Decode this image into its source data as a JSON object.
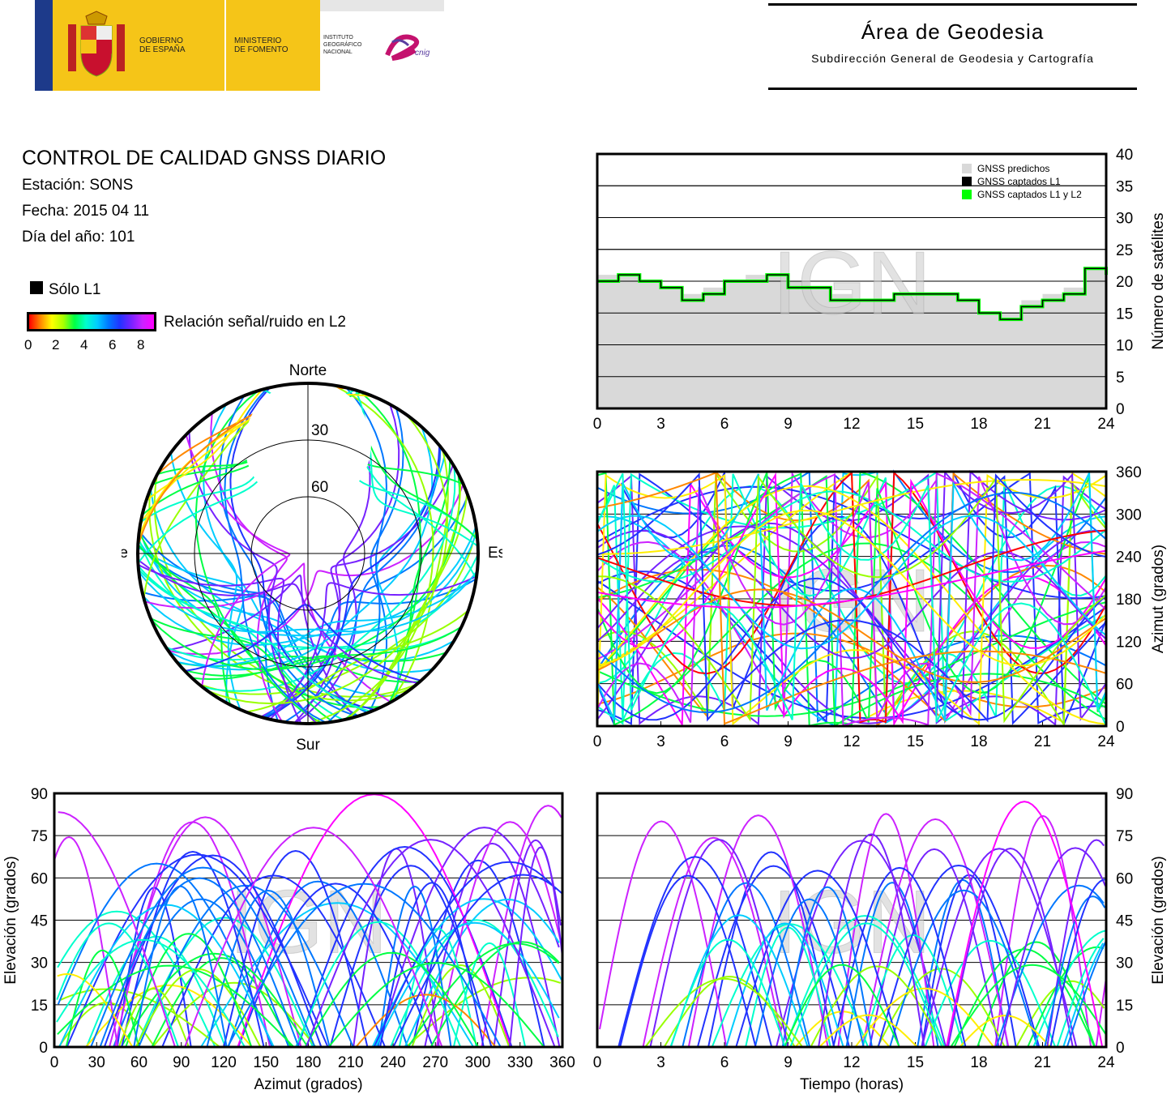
{
  "header": {
    "gov_line1": "GOBIERNO",
    "gov_line2": "DE ESPAÑA",
    "min_line1": "MINISTERIO",
    "min_line2": "DE FOMENTO",
    "ign_line1": "INSTITUTO",
    "ign_line2": "GEOGRÁFICO",
    "ign_line3": "NACIONAL",
    "cnig": "cnig",
    "area_title": "Área de Geodesia",
    "area_subtitle": "Subdirección General de Geodesia y Cartografía"
  },
  "report": {
    "title": "CONTROL DE CALIDAD GNSS DIARIO",
    "station": "Estación: SONS",
    "date": "Fecha: 2015 04 11",
    "doy": "Día del año: 101"
  },
  "legend": {
    "l1_only": "Sólo L1",
    "snr_label": "Relación señal/ruido en L2",
    "snr_ticks": [
      "0",
      "2",
      "4",
      "6",
      "8"
    ]
  },
  "watermark": "IGN",
  "colors": {
    "predicted": "#d9d9d9",
    "l1": "#000000",
    "l1l2": "#00ff00"
  },
  "chart_data": [
    {
      "type": "area",
      "id": "satellite-count",
      "ylabel": "Número de satélites",
      "xlim": [
        0,
        24
      ],
      "ylim": [
        0,
        40
      ],
      "xticks": [
        "0",
        "3",
        "6",
        "9",
        "12",
        "15",
        "18",
        "21",
        "24"
      ],
      "yticks": [
        "0",
        "5",
        "10",
        "15",
        "20",
        "25",
        "30",
        "35",
        "40"
      ],
      "grid": true,
      "legend_position": "top-right",
      "series": [
        {
          "name": "GNSS predichos",
          "x": [
            0,
            1,
            2,
            3,
            4,
            5,
            6,
            7,
            8,
            9,
            10,
            11,
            12,
            13,
            14,
            15,
            16,
            17,
            18,
            19,
            20,
            21,
            22,
            23,
            24
          ],
          "values": [
            21,
            21,
            20,
            19,
            18,
            19,
            20,
            21,
            21,
            20,
            19,
            18,
            17,
            17,
            18,
            18,
            18,
            17,
            15,
            15,
            17,
            18,
            19,
            22,
            21
          ]
        },
        {
          "name": "GNSS captados L1",
          "x": [
            0,
            1,
            2,
            3,
            4,
            5,
            6,
            7,
            8,
            9,
            10,
            11,
            12,
            13,
            14,
            15,
            16,
            17,
            18,
            19,
            20,
            21,
            22,
            23,
            24
          ],
          "values": [
            20,
            21,
            20,
            19,
            17,
            18,
            20,
            20,
            21,
            19,
            19,
            17,
            17,
            17,
            18,
            18,
            18,
            17,
            15,
            14,
            16,
            17,
            18,
            22,
            21
          ]
        },
        {
          "name": "GNSS captados L1 y L2",
          "x": [
            0,
            1,
            2,
            3,
            4,
            5,
            6,
            7,
            8,
            9,
            10,
            11,
            12,
            13,
            14,
            15,
            16,
            17,
            18,
            19,
            20,
            21,
            22,
            23,
            24
          ],
          "values": [
            20,
            21,
            20,
            19,
            17,
            18,
            20,
            20,
            21,
            19,
            19,
            17,
            17,
            17,
            18,
            18,
            18,
            17,
            15,
            14,
            16,
            17,
            18,
            22,
            21
          ]
        }
      ]
    },
    {
      "type": "scatter",
      "id": "azimuth-vs-time",
      "ylabel": "Azimut (grados)",
      "xlim": [
        0,
        24
      ],
      "ylim": [
        0,
        360
      ],
      "xticks": [
        "0",
        "3",
        "6",
        "9",
        "12",
        "15",
        "18",
        "21",
        "24"
      ],
      "yticks": [
        "0",
        "60",
        "120",
        "180",
        "240",
        "300",
        "360"
      ],
      "grid": true
    },
    {
      "type": "scatter",
      "id": "elevation-vs-azimuth",
      "xlabel": "Azimut (grados)",
      "ylabel": "Elevación (grados)",
      "xlim": [
        0,
        360
      ],
      "ylim": [
        0,
        90
      ],
      "xticks": [
        "0",
        "30",
        "60",
        "90",
        "120",
        "150",
        "180",
        "210",
        "240",
        "270",
        "300",
        "330",
        "360"
      ],
      "yticks": [
        "0",
        "15",
        "30",
        "45",
        "60",
        "75",
        "90"
      ],
      "grid": true
    },
    {
      "type": "scatter",
      "id": "elevation-vs-time",
      "xlabel": "Tiempo (horas)",
      "ylabel": "Elevación (grados)",
      "xlim": [
        0,
        24
      ],
      "ylim": [
        0,
        90
      ],
      "xticks": [
        "0",
        "3",
        "6",
        "9",
        "12",
        "15",
        "18",
        "21",
        "24"
      ],
      "yticks": [
        "0",
        "15",
        "30",
        "45",
        "60",
        "75",
        "90"
      ],
      "grid": true
    },
    {
      "type": "scatter",
      "id": "skyplot",
      "directions": {
        "north": "Norte",
        "south": "Sur",
        "west": "Oeste",
        "east": "Este"
      },
      "elevation_rings": [
        "30",
        "60"
      ]
    }
  ]
}
